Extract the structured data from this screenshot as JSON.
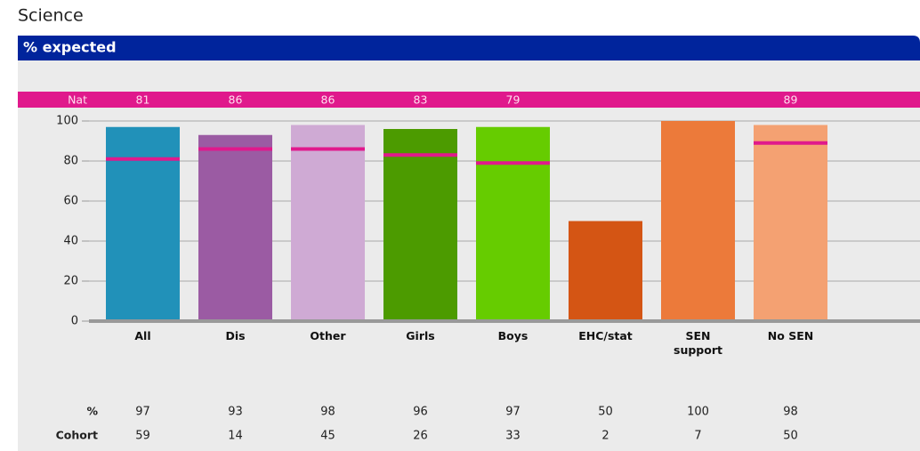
{
  "title": "Science",
  "header": "% expected",
  "chart_data": {
    "type": "bar",
    "categories": [
      "All",
      "Dis",
      "Other",
      "Girls",
      "Boys",
      "EHC/stat",
      "SEN support",
      "No SEN"
    ],
    "values": [
      97,
      93,
      98,
      96,
      97,
      50,
      100,
      98
    ],
    "colors": [
      "#2191b9",
      "#9b5ba3",
      "#cfaad4",
      "#4c9b00",
      "#66cc00",
      "#d45514",
      "#ec7a3a",
      "#f4a172"
    ],
    "national": {
      "label": "Nat",
      "values": [
        81,
        86,
        86,
        83,
        79,
        null,
        null,
        89
      ],
      "color": "#e0198c"
    },
    "ylim": [
      0,
      100
    ],
    "yticks": [
      0,
      20,
      40,
      60,
      80,
      100
    ],
    "grid": true
  },
  "table": {
    "row_labels": [
      "%",
      "Cohort"
    ],
    "cohort": [
      59,
      14,
      45,
      26,
      33,
      2,
      7,
      50
    ]
  }
}
